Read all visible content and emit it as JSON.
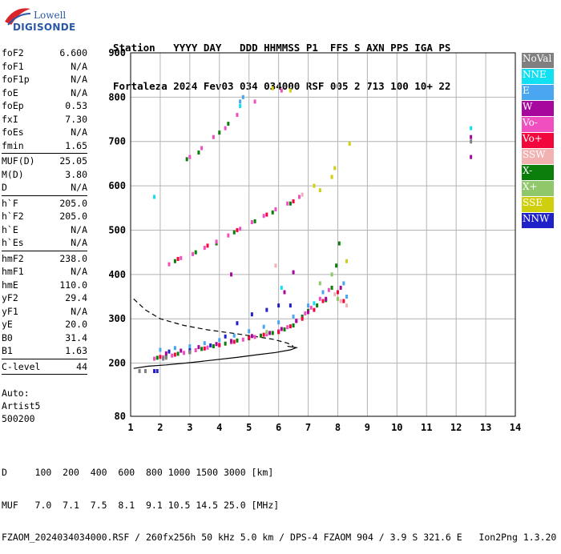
{
  "logo": {
    "top": "Lowell",
    "bottom": "DIGISONDE"
  },
  "header": {
    "line1": "Station   YYYY DAY   DDD HHMMSS P1  FFS S AXN PPS IGA PS",
    "line2": "Fortaleza 2024 Fev03 034 034000 RSF 005 2 713 100 10+ 22"
  },
  "params": [
    {
      "name": "foF2",
      "value": "6.600"
    },
    {
      "name": "foF1",
      "value": "N/A"
    },
    {
      "name": "foF1p",
      "value": "N/A"
    },
    {
      "name": "foE",
      "value": "N/A"
    },
    {
      "name": "foEp",
      "value": "0.53"
    },
    {
      "name": "fxI",
      "value": "7.30"
    },
    {
      "name": "foEs",
      "value": "N/A"
    },
    {
      "name": "fmin",
      "value": "1.65"
    },
    {
      "sep": true
    },
    {
      "name": "MUF(D)",
      "value": "25.05"
    },
    {
      "name": "M(D)",
      "value": "3.80"
    },
    {
      "name": "D",
      "value": "N/A"
    },
    {
      "sep": true
    },
    {
      "name": "h`F",
      "value": "205.0"
    },
    {
      "name": "h`F2",
      "value": "205.0"
    },
    {
      "name": "h`E",
      "value": "N/A"
    },
    {
      "name": "h`Es",
      "value": "N/A"
    },
    {
      "sep": true
    },
    {
      "name": "hmF2",
      "value": "238.0"
    },
    {
      "name": "hmF1",
      "value": "N/A"
    },
    {
      "name": "hmE",
      "value": "110.0"
    },
    {
      "name": "yF2",
      "value": "29.4"
    },
    {
      "name": "yF1",
      "value": "N/A"
    },
    {
      "name": "yE",
      "value": "20.0"
    },
    {
      "name": "B0",
      "value": "31.4"
    },
    {
      "name": "B1",
      "value": "1.63"
    },
    {
      "sep": true
    },
    {
      "name": "C-level",
      "value": "44"
    },
    {
      "sep": true
    }
  ],
  "auto": {
    "line1": "Auto:",
    "line2": "Artist5",
    "line3": "500200"
  },
  "legend": [
    {
      "label": "NoVal",
      "color": "#808080"
    },
    {
      "label": "NNE",
      "color": "#11e0f2"
    },
    {
      "label": "E",
      "color": "#4aa6f0"
    },
    {
      "label": "W",
      "color": "#a6089e"
    },
    {
      "label": "Vo-",
      "color": "#f04fbf"
    },
    {
      "label": "Vo+",
      "color": "#f2073d"
    },
    {
      "label": "SSW",
      "color": "#f2b2b2"
    },
    {
      "label": "X-",
      "color": "#0b7d0b"
    },
    {
      "label": "X+",
      "color": "#8fc76a"
    },
    {
      "label": "SSE",
      "color": "#cfcf10"
    },
    {
      "label": "NNW",
      "color": "#2121c9"
    }
  ],
  "footer": {
    "line1": "D     100  200  400  600  800 1000 1500 3000 [km]",
    "line2": "MUF   7.0  7.1  7.5  8.1  9.1 10.5 14.5 25.0 [MHz]",
    "line3": "FZAOM_2024034034000.RSF / 260fx256h 50 kHz 5.0 km / DPS-4 FZAOM 904 / 3.9 S 321.6 E   Ion2Png 1.3.20"
  },
  "chart_data": {
    "type": "scatter",
    "xlim": [
      1,
      14
    ],
    "ylim": [
      80,
      900
    ],
    "x_ticks": [
      1,
      2,
      3,
      4,
      5,
      6,
      7,
      8,
      9,
      10,
      11,
      12,
      13,
      14
    ],
    "y_ticks": [
      80,
      200,
      300,
      400,
      500,
      600,
      700,
      800,
      900
    ],
    "grid": true,
    "xlabel": "",
    "ylabel": "",
    "series": [
      {
        "name": "X-",
        "color": "#0b7d0b",
        "points": [
          [
            1.9,
            212
          ],
          [
            2.2,
            215
          ],
          [
            2.6,
            221
          ],
          [
            3.0,
            226
          ],
          [
            3.4,
            232
          ],
          [
            3.8,
            238
          ],
          [
            4.2,
            244
          ],
          [
            4.6,
            251
          ],
          [
            5.0,
            256
          ],
          [
            5.4,
            262
          ],
          [
            5.8,
            268
          ],
          [
            6.2,
            276
          ],
          [
            6.5,
            285
          ],
          [
            6.8,
            305
          ],
          [
            7.0,
            318
          ],
          [
            7.3,
            330
          ],
          [
            7.6,
            342
          ],
          [
            7.8,
            370
          ],
          [
            7.95,
            420
          ],
          [
            8.05,
            470
          ],
          [
            2.5,
            430
          ],
          [
            3.2,
            450
          ],
          [
            3.9,
            470
          ],
          [
            4.5,
            495
          ],
          [
            5.2,
            520
          ],
          [
            5.8,
            540
          ],
          [
            6.4,
            560
          ],
          [
            2.9,
            660
          ],
          [
            3.3,
            675
          ],
          [
            4.0,
            720
          ],
          [
            4.3,
            740
          ]
        ]
      },
      {
        "name": "Vo-",
        "color": "#f04fbf",
        "points": [
          [
            1.8,
            210
          ],
          [
            2.1,
            213
          ],
          [
            2.4,
            217
          ],
          [
            2.8,
            223
          ],
          [
            3.2,
            229
          ],
          [
            3.6,
            235
          ],
          [
            4.0,
            240
          ],
          [
            4.4,
            247
          ],
          [
            4.8,
            253
          ],
          [
            5.2,
            259
          ],
          [
            5.6,
            265
          ],
          [
            6.0,
            272
          ],
          [
            6.3,
            281
          ],
          [
            6.6,
            296
          ],
          [
            6.9,
            312
          ],
          [
            7.1,
            325
          ],
          [
            7.4,
            345
          ],
          [
            7.7,
            365
          ],
          [
            2.3,
            423
          ],
          [
            2.7,
            437
          ],
          [
            3.1,
            446
          ],
          [
            3.5,
            460
          ],
          [
            3.9,
            474
          ],
          [
            4.3,
            488
          ],
          [
            4.7,
            503
          ],
          [
            5.1,
            518
          ],
          [
            5.5,
            532
          ],
          [
            5.9,
            547
          ],
          [
            6.3,
            560
          ],
          [
            6.7,
            575
          ],
          [
            3.0,
            665
          ],
          [
            3.4,
            685
          ],
          [
            3.8,
            710
          ],
          [
            4.2,
            730
          ],
          [
            4.6,
            760
          ],
          [
            5.2,
            790
          ],
          [
            6.1,
            815
          ]
        ]
      },
      {
        "name": "Vo+",
        "color": "#f2073d",
        "points": [
          [
            2.0,
            214
          ],
          [
            2.5,
            219
          ],
          [
            3.0,
            225
          ],
          [
            3.5,
            233
          ],
          [
            4.0,
            241
          ],
          [
            4.5,
            248
          ],
          [
            5.0,
            257
          ],
          [
            5.5,
            264
          ],
          [
            6.0,
            270
          ],
          [
            6.4,
            283
          ],
          [
            6.8,
            300
          ],
          [
            7.2,
            320
          ],
          [
            7.5,
            340
          ],
          [
            8.0,
            360
          ],
          [
            8.2,
            340
          ],
          [
            2.6,
            435
          ],
          [
            3.6,
            465
          ],
          [
            4.6,
            500
          ],
          [
            5.6,
            535
          ],
          [
            6.5,
            565
          ]
        ]
      },
      {
        "name": "E",
        "color": "#4aa6f0",
        "points": [
          [
            2.0,
            230
          ],
          [
            2.5,
            234
          ],
          [
            3.0,
            238
          ],
          [
            3.5,
            245
          ],
          [
            4.0,
            252
          ],
          [
            4.5,
            262
          ],
          [
            5.0,
            272
          ],
          [
            5.5,
            282
          ],
          [
            6.0,
            292
          ],
          [
            6.5,
            305
          ],
          [
            7.0,
            330
          ],
          [
            7.5,
            360
          ],
          [
            8.2,
            380
          ],
          [
            8.3,
            350
          ],
          [
            4.7,
            790
          ],
          [
            4.8,
            800
          ]
        ]
      },
      {
        "name": "W",
        "color": "#a6089e",
        "points": [
          [
            2.2,
            222
          ],
          [
            2.7,
            228
          ],
          [
            3.3,
            236
          ],
          [
            3.9,
            243
          ],
          [
            4.4,
            250
          ],
          [
            5.1,
            261
          ],
          [
            5.7,
            268
          ],
          [
            6.1,
            277
          ],
          [
            6.6,
            295
          ],
          [
            7.0,
            315
          ],
          [
            7.6,
            345
          ],
          [
            8.1,
            370
          ],
          [
            4.4,
            400
          ],
          [
            6.2,
            360
          ],
          [
            6.5,
            405
          ],
          [
            12.5,
            665
          ],
          [
            12.5,
            710
          ]
        ]
      },
      {
        "name": "NNW",
        "color": "#2121c9",
        "points": [
          [
            1.8,
            182
          ],
          [
            1.9,
            182
          ],
          [
            2.3,
            226
          ],
          [
            3.0,
            229
          ],
          [
            3.7,
            240
          ],
          [
            4.2,
            260
          ],
          [
            4.6,
            290
          ],
          [
            5.1,
            310
          ],
          [
            5.6,
            320
          ],
          [
            6.0,
            330
          ],
          [
            6.4,
            330
          ]
        ]
      },
      {
        "name": "NNE",
        "color": "#11e0f2",
        "points": [
          [
            1.8,
            575
          ],
          [
            4.7,
            780
          ],
          [
            12.5,
            730
          ],
          [
            6.1,
            370
          ],
          [
            7.2,
            335
          ]
        ]
      },
      {
        "name": "SSW",
        "color": "#f2b2b2",
        "points": [
          [
            8.1,
            340
          ],
          [
            8.3,
            330
          ],
          [
            7.9,
            355
          ],
          [
            5.9,
            420
          ],
          [
            6.8,
            580
          ]
        ]
      },
      {
        "name": "X+",
        "color": "#8fc76a",
        "points": [
          [
            7.4,
            380
          ],
          [
            7.8,
            400
          ],
          [
            8.0,
            345
          ],
          [
            5.6,
            270
          ]
        ]
      },
      {
        "name": "SSE",
        "color": "#cfcf10",
        "points": [
          [
            7.2,
            600
          ],
          [
            7.4,
            590
          ],
          [
            7.8,
            620
          ],
          [
            7.9,
            640
          ],
          [
            8.3,
            430
          ],
          [
            8.4,
            695
          ],
          [
            6.4,
            815
          ],
          [
            5.8,
            820
          ]
        ]
      },
      {
        "name": "NoVal",
        "color": "#808080",
        "points": [
          [
            1.3,
            182
          ],
          [
            1.5,
            182
          ],
          [
            2.1,
            210
          ],
          [
            2.2,
            212
          ],
          [
            12.5,
            700
          ],
          [
            3.0,
            225
          ]
        ]
      }
    ],
    "curves": [
      {
        "name": "profile_dashed",
        "style": "dashed",
        "points": [
          [
            1.1,
            345
          ],
          [
            1.5,
            320
          ],
          [
            2.0,
            300
          ],
          [
            2.8,
            285
          ],
          [
            3.6,
            275
          ],
          [
            4.5,
            267
          ],
          [
            5.2,
            260
          ],
          [
            5.8,
            254
          ],
          [
            6.3,
            245
          ],
          [
            6.5,
            238
          ]
        ]
      },
      {
        "name": "profile_solid",
        "style": "solid",
        "points": [
          [
            1.1,
            188
          ],
          [
            1.6,
            193
          ],
          [
            2.2,
            196
          ],
          [
            3.0,
            201
          ],
          [
            3.8,
            207
          ],
          [
            4.6,
            213
          ],
          [
            5.3,
            219
          ],
          [
            5.9,
            224
          ],
          [
            6.4,
            230
          ],
          [
            6.6,
            235
          ],
          [
            6.3,
            238
          ]
        ]
      }
    ]
  }
}
